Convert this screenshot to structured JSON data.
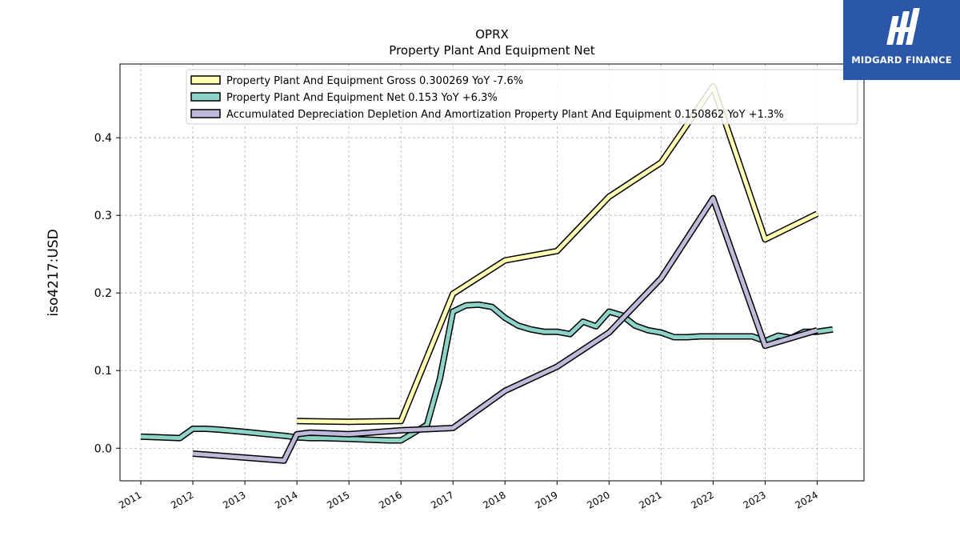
{
  "logo": {
    "text": "MIDGARD FINANCE",
    "background": "#2b57a8"
  },
  "chart_data": {
    "type": "line",
    "title": "OPRX",
    "subtitle": "Property Plant And Equipment Net",
    "xlabel": "",
    "ylabel": "iso4217:USD",
    "xlim": [
      2010.6,
      2024.9
    ],
    "ylim": [
      -0.042,
      0.495
    ],
    "yticks": [
      0.0,
      0.1,
      0.2,
      0.3,
      0.4
    ],
    "ytick_labels": [
      "0.0",
      "0.1",
      "0.2",
      "0.3",
      "0.4"
    ],
    "xticks": [
      2011,
      2012,
      2013,
      2014,
      2015,
      2016,
      2017,
      2018,
      2019,
      2020,
      2021,
      2022,
      2023,
      2024
    ],
    "xtick_labels": [
      "2011",
      "2012",
      "2013",
      "2014",
      "2015",
      "2016",
      "2017",
      "2018",
      "2019",
      "2020",
      "2021",
      "2022",
      "2023",
      "2024"
    ],
    "grid": true,
    "legend_position": "top-left",
    "series": [
      {
        "name": "Property Plant And Equipment Gross  0.300269 YoY -7.6%",
        "color": "#ffffb3",
        "x": [
          2014.0,
          2015.0,
          2016.0,
          2017.0,
          2018.0,
          2019.0,
          2020.0,
          2021.0,
          2022.0,
          2023.0,
          2024.0
        ],
        "y": [
          0.035,
          0.034,
          0.035,
          0.199,
          0.242,
          0.254,
          0.324,
          0.368,
          0.466,
          0.269,
          0.302
        ]
      },
      {
        "name": "Property Plant And Equipment Net  0.153 YoY +6.3%",
        "color": "#8dd3c7",
        "x": [
          2011.0,
          2011.75,
          2012.0,
          2012.25,
          2012.5,
          2013.0,
          2013.75,
          2014.0,
          2014.25,
          2014.5,
          2015.0,
          2015.75,
          2016.0,
          2016.5,
          2016.75,
          2017.0,
          2017.25,
          2017.5,
          2017.75,
          2018.0,
          2018.25,
          2018.5,
          2018.75,
          2019.0,
          2019.25,
          2019.5,
          2019.75,
          2020.0,
          2020.25,
          2020.5,
          2020.75,
          2021.0,
          2021.25,
          2021.5,
          2021.75,
          2022.0,
          2022.75,
          2023.0,
          2023.25,
          2023.5,
          2023.75,
          2024.0,
          2024.3
        ],
        "y": [
          0.015,
          0.013,
          0.025,
          0.025,
          0.024,
          0.021,
          0.016,
          0.014,
          0.013,
          0.013,
          0.012,
          0.01,
          0.01,
          0.03,
          0.09,
          0.176,
          0.184,
          0.185,
          0.182,
          0.168,
          0.158,
          0.153,
          0.15,
          0.15,
          0.147,
          0.163,
          0.157,
          0.176,
          0.171,
          0.158,
          0.152,
          0.149,
          0.143,
          0.143,
          0.144,
          0.144,
          0.144,
          0.138,
          0.145,
          0.142,
          0.15,
          0.15,
          0.153
        ]
      },
      {
        "name": "Accumulated Depreciation Depletion And Amortization Property Plant And Equipment  0.150862 YoY +1.3%",
        "color": "#bebada",
        "x": [
          2012.0,
          2013.75,
          2014.0,
          2014.25,
          2015.0,
          2016.0,
          2017.0,
          2018.0,
          2019.0,
          2020.0,
          2021.0,
          2022.0,
          2023.0,
          2024.0
        ],
        "y": [
          -0.007,
          -0.016,
          0.018,
          0.02,
          0.018,
          0.023,
          0.026,
          0.074,
          0.105,
          0.149,
          0.219,
          0.322,
          0.132,
          0.152
        ]
      }
    ]
  }
}
